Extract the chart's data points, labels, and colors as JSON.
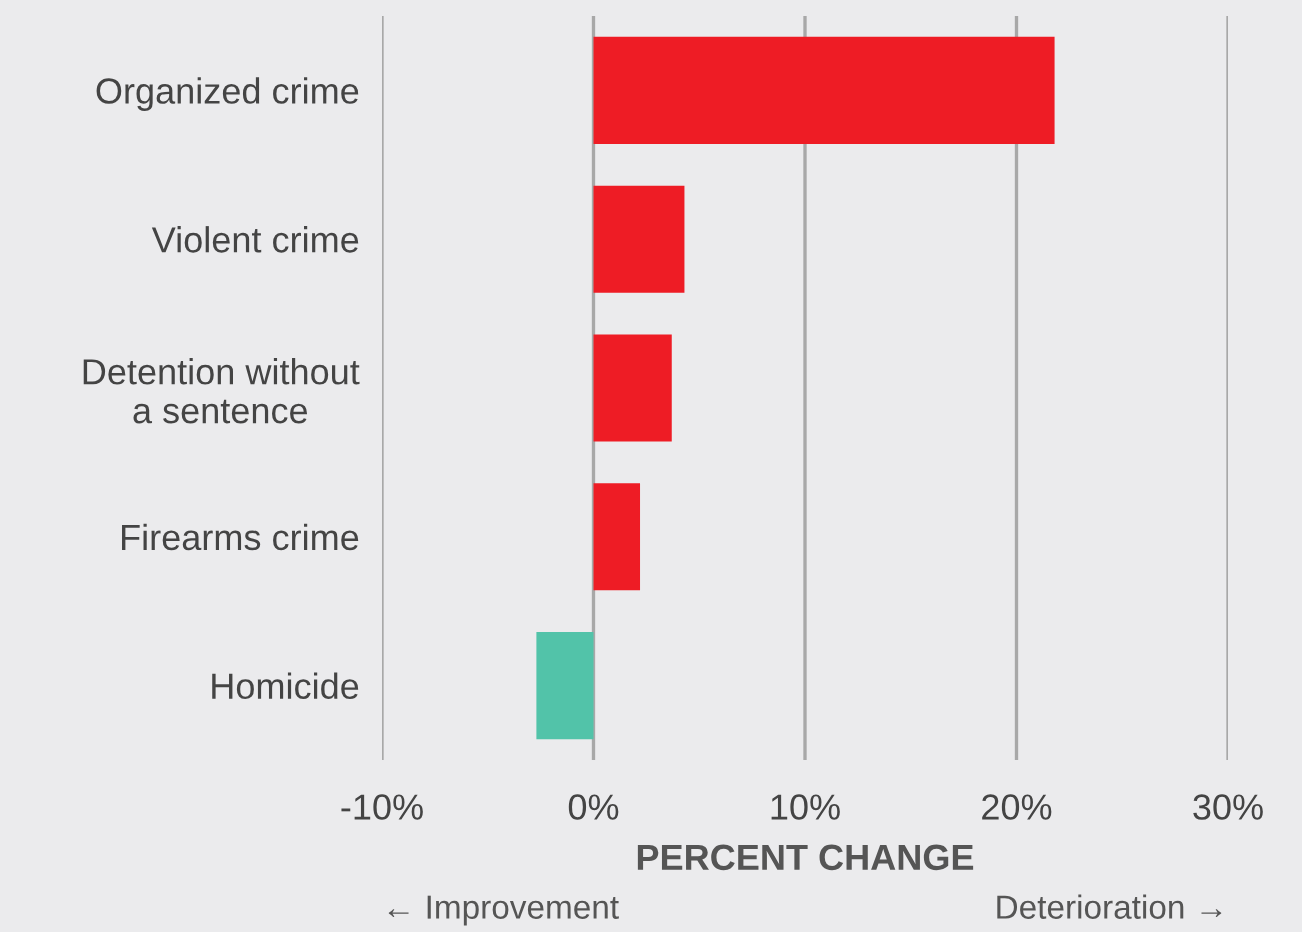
{
  "chart_data": {
    "type": "bar",
    "orientation": "horizontal",
    "categories": [
      "Organized crime",
      "Violent crime",
      "Detention without\na sentence",
      "Firearms crime",
      "Homicide"
    ],
    "values": [
      21.8,
      4.3,
      3.7,
      2.2,
      -2.7
    ],
    "colors": [
      "#ee1c25",
      "#ee1c25",
      "#ee1c25",
      "#ee1c25",
      "#52c3a9"
    ],
    "xlim": [
      -10,
      30
    ],
    "xticks": [
      {
        "value": -10,
        "label": "-10%"
      },
      {
        "value": 0,
        "label": "0%"
      },
      {
        "value": 10,
        "label": "10%"
      },
      {
        "value": 20,
        "label": "20%"
      },
      {
        "value": 30,
        "label": "30%"
      }
    ],
    "xlabel": "PERCENT CHANGE",
    "annotations": [
      "← Improvement",
      "Deterioration →"
    ],
    "grid": "x"
  }
}
